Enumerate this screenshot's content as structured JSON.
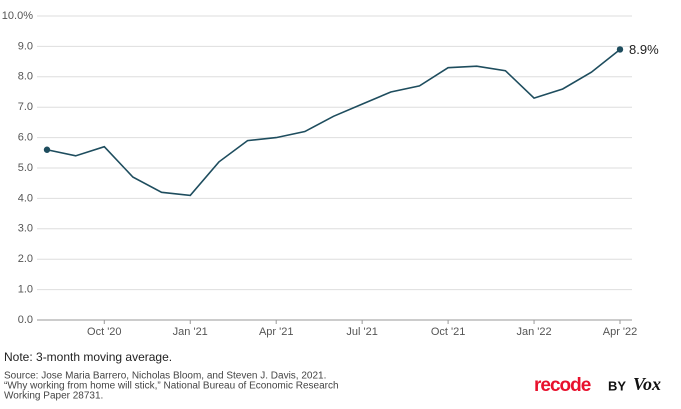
{
  "chart_data": {
    "type": "line",
    "categories": [
      null,
      null,
      "Oct '20",
      null,
      null,
      "Jan '21",
      null,
      null,
      "Apr '21",
      null,
      null,
      "Jul '21",
      null,
      null,
      "Oct '21",
      null,
      null,
      "Jan '22",
      null,
      null,
      "Apr '22"
    ],
    "series": [
      {
        "color": "#1e4d5e",
        "values": [
          5.6,
          5.4,
          5.7,
          4.7,
          4.2,
          4.1,
          5.2,
          5.9,
          6.0,
          6.2,
          6.7,
          7.1,
          7.5,
          7.7,
          8.3,
          8.35,
          8.2,
          7.3,
          7.6,
          8.15,
          8.9
        ],
        "value_labels": [
          null,
          null,
          null,
          null,
          null,
          null,
          null,
          null,
          null,
          null,
          null,
          null,
          null,
          null,
          null,
          null,
          null,
          null,
          null,
          null,
          "8.9%"
        ]
      }
    ],
    "ylim": [
      0,
      10
    ],
    "yticks": [
      {
        "value": 0,
        "label": "0.0"
      },
      {
        "value": 1,
        "label": "1.0"
      },
      {
        "value": 2,
        "label": "2.0"
      },
      {
        "value": 3,
        "label": "3.0"
      },
      {
        "value": 4,
        "label": "4.0"
      },
      {
        "value": 5,
        "label": "5.0"
      },
      {
        "value": 6,
        "label": "6.0"
      },
      {
        "value": 7,
        "label": "7.0"
      },
      {
        "value": 8,
        "label": "8.0"
      },
      {
        "value": 9,
        "label": "9.0"
      },
      {
        "value": 10,
        "label": "10.0%"
      }
    ],
    "grid": true,
    "note": "Note: 3-month moving average.",
    "source": [
      "Source: Jose Maria Barrero, Nicholas Bloom, and Steven J. Davis, 2021.",
      "“Why working from home will stick,” National Bureau of Economic Research",
      "Working Paper 28731."
    ],
    "logo": {
      "brand": "recode",
      "by": "BY",
      "partner": "Vox"
    }
  }
}
